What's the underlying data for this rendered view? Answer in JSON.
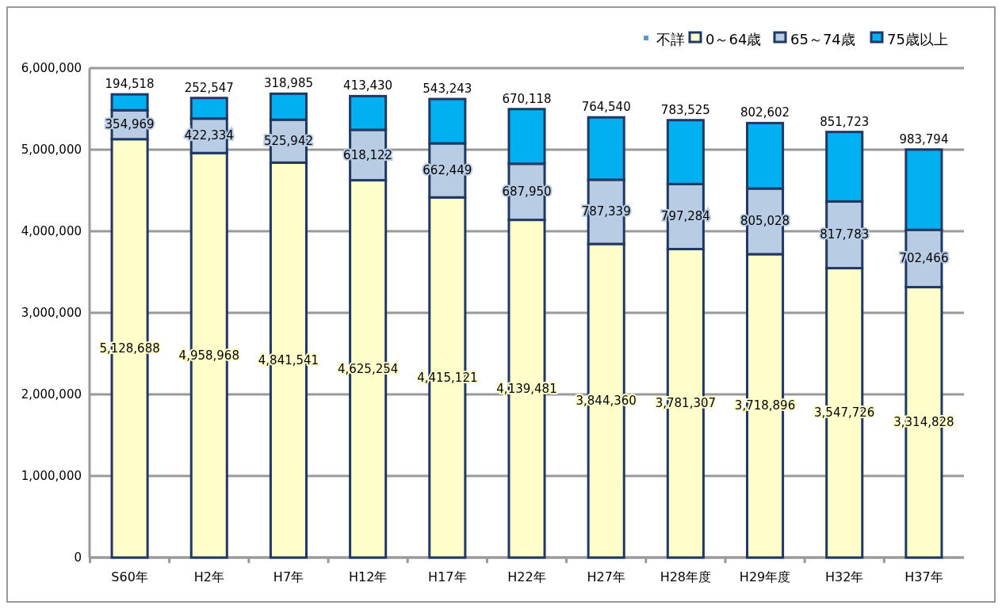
{
  "chart_data": {
    "type": "bar",
    "stacked": true,
    "categories": [
      "S60年",
      "H2年",
      "H7年",
      "H12年",
      "H17年",
      "H22年",
      "H27年",
      "H28年度",
      "H29年度",
      "H32年",
      "H37年"
    ],
    "series": [
      {
        "name": "不詳",
        "color": "#5b9bd5",
        "values": [
          null,
          null,
          null,
          null,
          null,
          null,
          null,
          null,
          null,
          null,
          null
        ]
      },
      {
        "name": "0～64歳",
        "color": "#ffffcc",
        "values": [
          5128688,
          4958968,
          4841541,
          4625254,
          4415121,
          4139481,
          3844360,
          3781307,
          3718896,
          3547726,
          3314828
        ],
        "value_labels": [
          "5,128,688",
          "4,958,968",
          "4,841,541",
          "4,625,254",
          "4,415,121",
          "4,139,481",
          "3,844,360",
          "3,781,307",
          "3,718,896",
          "3,547,726",
          "3,314,828"
        ]
      },
      {
        "name": "65～74歳",
        "color": "#b8cce4",
        "values": [
          354969,
          422334,
          525942,
          618122,
          662449,
          687950,
          787339,
          797284,
          805028,
          817783,
          702466
        ],
        "value_labels": [
          "354,969",
          "422,334",
          "525,942",
          "618,122",
          "662,449",
          "687,950",
          "787,339",
          "797,284",
          "805,028",
          "817,783",
          "702,466"
        ]
      },
      {
        "name": "75歳以上",
        "color": "#00b0f0",
        "values": [
          194518,
          252547,
          318985,
          413430,
          543243,
          670118,
          764540,
          783525,
          802602,
          851723,
          983794
        ],
        "value_labels": [
          "194,518",
          "252,547",
          "318,985",
          "413,430",
          "543,243",
          "670,118",
          "764,540",
          "783,525",
          "802,602",
          "851,723",
          "983,794"
        ]
      }
    ],
    "ylim": [
      0,
      6000000
    ],
    "yticks": [
      {
        "value": 0,
        "label": "0"
      },
      {
        "value": 1000000,
        "label": "1,000,000"
      },
      {
        "value": 2000000,
        "label": "2,000,000"
      },
      {
        "value": 3000000,
        "label": "3,000,000"
      },
      {
        "value": 4000000,
        "label": "4,000,000"
      },
      {
        "value": 5000000,
        "label": "5,000,000"
      },
      {
        "value": 6000000,
        "label": "6,000,000"
      }
    ],
    "grid": "y",
    "legend": "top right"
  }
}
